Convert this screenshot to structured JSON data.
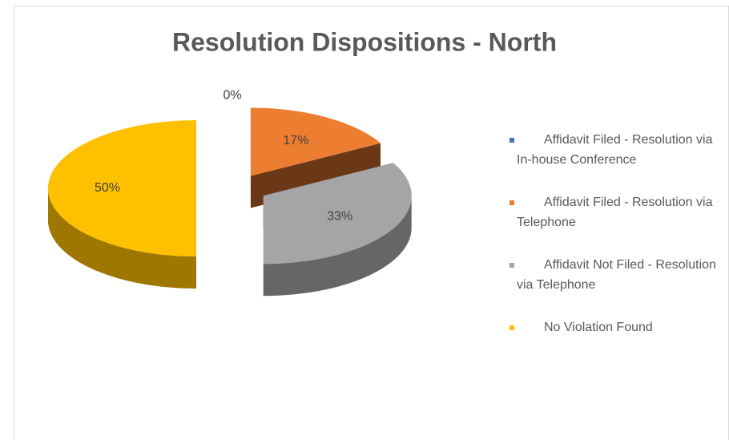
{
  "chart_data": {
    "type": "pie",
    "title": "Resolution Dispositions - North",
    "categories": [
      "Affidavit Filed - Resolution via In-house Conference",
      "Affidavit Filed - Resolution via Telephone",
      "Affidavit Not Filed - Resolution via Telephone",
      "No Violation Found"
    ],
    "values": [
      0,
      17,
      33,
      50
    ],
    "value_labels": [
      "0%",
      "17%",
      "33%",
      "50%"
    ],
    "colors": [
      "#4472c4",
      "#ed7d31",
      "#a5a5a5",
      "#ffc000"
    ],
    "legend": "right"
  }
}
